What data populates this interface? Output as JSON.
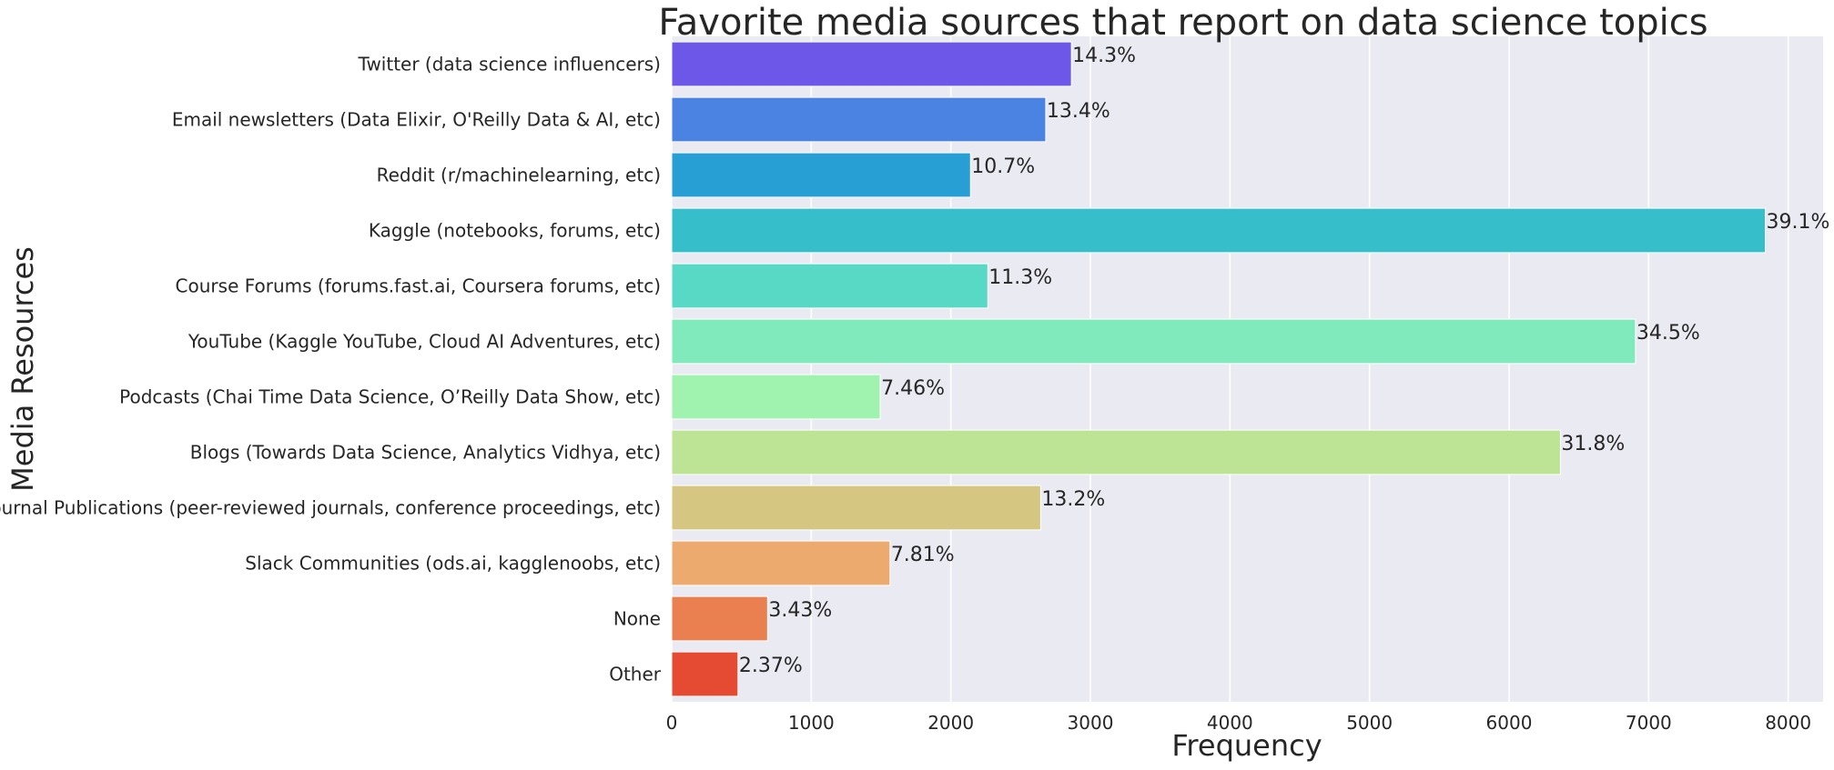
{
  "chart_data": {
    "type": "bar",
    "orientation": "horizontal",
    "title": "Favorite media sources that report on data science topics",
    "xlabel": "Frequency",
    "ylabel": "Media Resources",
    "xlim": [
      0,
      8250
    ],
    "xticks": [
      0,
      1000,
      2000,
      3000,
      4000,
      5000,
      6000,
      7000,
      8000
    ],
    "grid": true,
    "categories": [
      "Twitter (data science influencers)",
      "Email newsletters (Data Elixir, O'Reilly Data & AI, etc)",
      "Reddit (r/machinelearning, etc)",
      "Kaggle (notebooks, forums, etc)",
      "Course Forums (forums.fast.ai, Coursera forums, etc)",
      "YouTube (Kaggle YouTube, Cloud AI Adventures, etc)",
      "Podcasts (Chai Time Data Science, O’Reilly Data Show, etc)",
      "Blogs (Towards Data Science, Analytics Vidhya, etc)",
      "Journal Publications (peer-reviewed journals, conference proceedings, etc)",
      "Slack Communities (ods.ai, kagglenoobs, etc)",
      "None",
      "Other"
    ],
    "values": [
      2864,
      2680,
      2141,
      7836,
      2265,
      6906,
      1494,
      6368,
      2644,
      1564,
      687,
      475
    ],
    "labels": [
      "14.3%",
      "13.4%",
      "10.7%",
      "39.1%",
      "11.3%",
      "34.5%",
      "7.46%",
      "31.8%",
      "13.2%",
      "7.81%",
      "3.43%",
      "2.37%"
    ],
    "colors": [
      "#6c57e8",
      "#4b83e3",
      "#279fd5",
      "#36bfca",
      "#58d9c5",
      "#80eabd",
      "#9ff3ae",
      "#bde394",
      "#d5c781",
      "#ecaa6f",
      "#ea7f4f",
      "#e54b33"
    ]
  }
}
